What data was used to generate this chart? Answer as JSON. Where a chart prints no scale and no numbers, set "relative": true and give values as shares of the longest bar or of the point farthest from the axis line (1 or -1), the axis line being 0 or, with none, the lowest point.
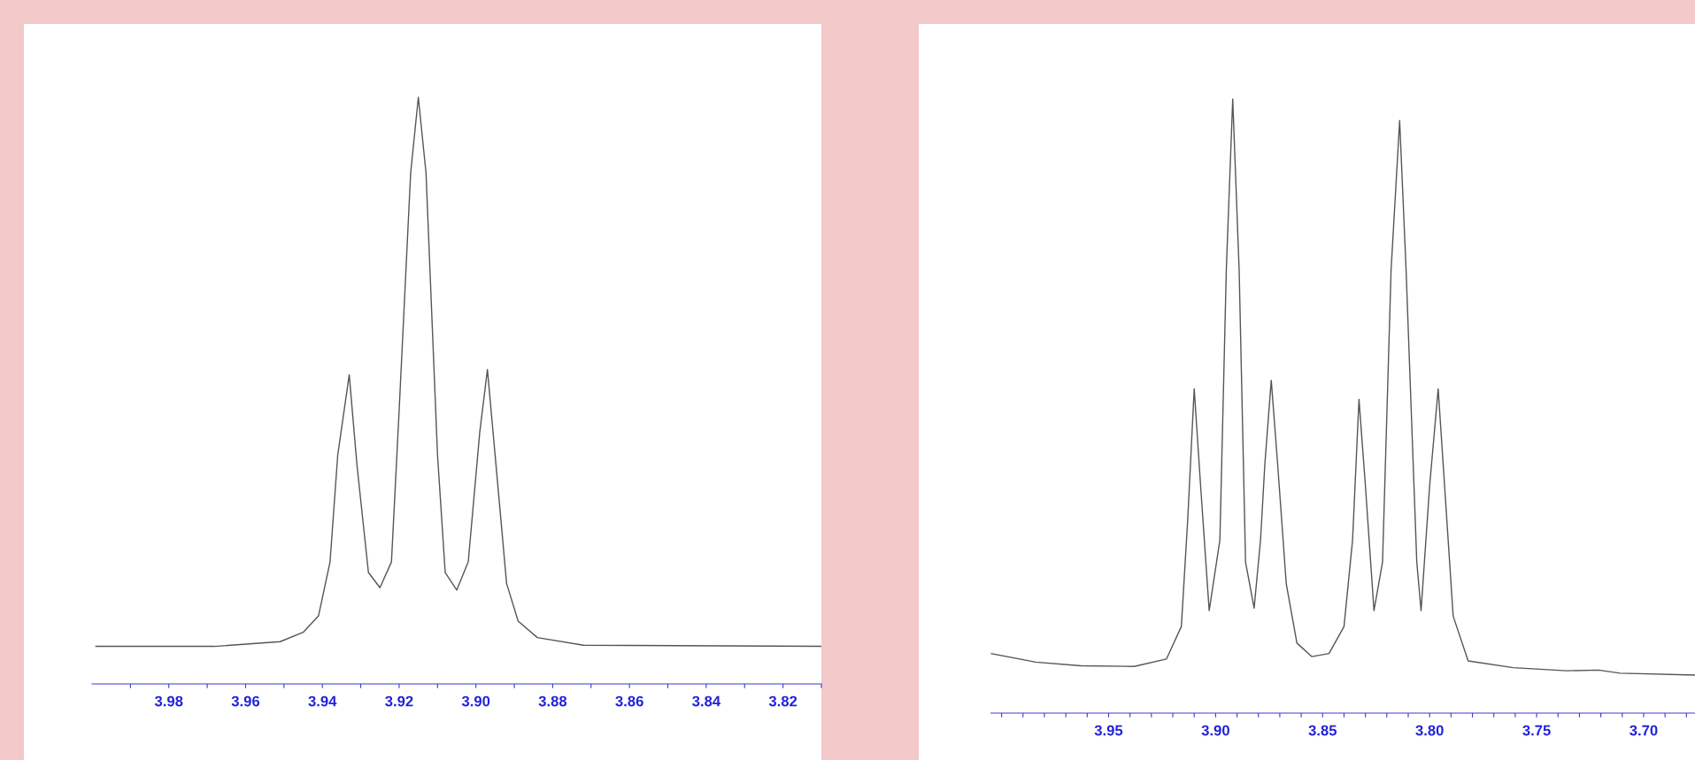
{
  "chart_data": [
    {
      "type": "line",
      "relative": true,
      "tick_labels": "x",
      "xlim": [
        4.0,
        3.81
      ],
      "xticks": [
        {
          "value": 3.99,
          "label": null
        },
        {
          "value": 3.98,
          "label": "3.98"
        },
        {
          "value": 3.97,
          "label": null
        },
        {
          "value": 3.96,
          "label": "3.96"
        },
        {
          "value": 3.95,
          "label": null
        },
        {
          "value": 3.94,
          "label": "3.94"
        },
        {
          "value": 3.93,
          "label": null
        },
        {
          "value": 3.92,
          "label": "3.92"
        },
        {
          "value": 3.91,
          "label": null
        },
        {
          "value": 3.9,
          "label": "3.90"
        },
        {
          "value": 3.89,
          "label": null
        },
        {
          "value": 3.88,
          "label": "3.88"
        },
        {
          "value": 3.87,
          "label": null
        },
        {
          "value": 3.86,
          "label": "3.86"
        },
        {
          "value": 3.85,
          "label": null
        },
        {
          "value": 3.84,
          "label": "3.84"
        },
        {
          "value": 3.83,
          "label": null
        },
        {
          "value": 3.82,
          "label": "3.82"
        },
        {
          "value": 3.81,
          "label": null
        }
      ],
      "x": [
        3.999,
        3.968,
        3.951,
        3.945,
        3.941,
        3.938,
        3.936,
        3.933,
        3.931,
        3.928,
        3.925,
        3.922,
        3.92,
        3.917,
        3.915,
        3.913,
        3.91,
        3.908,
        3.905,
        3.902,
        3.899,
        3.897,
        3.895,
        3.892,
        3.889,
        3.884,
        3.872,
        3.81
      ],
      "series": [
        {
          "color": "#555555",
          "values": [
            0.064,
            0.064,
            0.072,
            0.088,
            0.116,
            0.208,
            0.39,
            0.527,
            0.374,
            0.19,
            0.164,
            0.208,
            0.466,
            0.871,
            1.0,
            0.871,
            0.39,
            0.19,
            0.16,
            0.208,
            0.429,
            0.536,
            0.39,
            0.171,
            0.107,
            0.079,
            0.066,
            0.064
          ]
        }
      ]
    },
    {
      "type": "line",
      "relative": true,
      "tick_labels": "x",
      "xlim": [
        4.005,
        3.676
      ],
      "xticks": [
        {
          "value": 4.0,
          "label": null
        },
        {
          "value": 3.99,
          "label": null
        },
        {
          "value": 3.98,
          "label": null
        },
        {
          "value": 3.97,
          "label": null
        },
        {
          "value": 3.96,
          "label": null
        },
        {
          "value": 3.95,
          "label": "3.95"
        },
        {
          "value": 3.94,
          "label": null
        },
        {
          "value": 3.93,
          "label": null
        },
        {
          "value": 3.92,
          "label": null
        },
        {
          "value": 3.91,
          "label": null
        },
        {
          "value": 3.9,
          "label": "3.90"
        },
        {
          "value": 3.89,
          "label": null
        },
        {
          "value": 3.88,
          "label": null
        },
        {
          "value": 3.87,
          "label": null
        },
        {
          "value": 3.86,
          "label": null
        },
        {
          "value": 3.85,
          "label": "3.85"
        },
        {
          "value": 3.84,
          "label": null
        },
        {
          "value": 3.83,
          "label": null
        },
        {
          "value": 3.82,
          "label": null
        },
        {
          "value": 3.81,
          "label": null
        },
        {
          "value": 3.8,
          "label": "3.80"
        },
        {
          "value": 3.79,
          "label": null
        },
        {
          "value": 3.78,
          "label": null
        },
        {
          "value": 3.77,
          "label": null
        },
        {
          "value": 3.76,
          "label": null
        },
        {
          "value": 3.75,
          "label": "3.75"
        },
        {
          "value": 3.74,
          "label": null
        },
        {
          "value": 3.73,
          "label": null
        },
        {
          "value": 3.72,
          "label": null
        },
        {
          "value": 3.71,
          "label": null
        },
        {
          "value": 3.7,
          "label": "3.70"
        },
        {
          "value": 3.69,
          "label": null
        },
        {
          "value": 3.68,
          "label": null
        }
      ],
      "x": [
        4.005,
        3.984,
        3.963,
        3.938,
        3.923,
        3.916,
        3.913,
        3.91,
        3.907,
        3.903,
        3.898,
        3.895,
        3.892,
        3.889,
        3.886,
        3.882,
        3.879,
        3.877,
        3.874,
        3.871,
        3.867,
        3.862,
        3.855,
        3.847,
        3.84,
        3.836,
        3.833,
        3.83,
        3.826,
        3.822,
        3.818,
        3.814,
        3.811,
        3.806,
        3.804,
        3.8,
        3.796,
        3.793,
        3.789,
        3.782,
        3.761,
        3.736,
        3.721,
        3.711,
        3.676
      ],
      "series": [
        {
          "color": "#555555",
          "values": [
            0.097,
            0.083,
            0.077,
            0.076,
            0.088,
            0.141,
            0.317,
            0.528,
            0.37,
            0.167,
            0.282,
            0.722,
            1.0,
            0.722,
            0.246,
            0.171,
            0.282,
            0.405,
            0.542,
            0.405,
            0.211,
            0.114,
            0.092,
            0.097,
            0.141,
            0.282,
            0.511,
            0.37,
            0.167,
            0.246,
            0.722,
            0.965,
            0.722,
            0.246,
            0.167,
            0.37,
            0.528,
            0.37,
            0.158,
            0.085,
            0.074,
            0.069,
            0.07,
            0.065,
            0.062
          ]
        }
      ]
    }
  ]
}
